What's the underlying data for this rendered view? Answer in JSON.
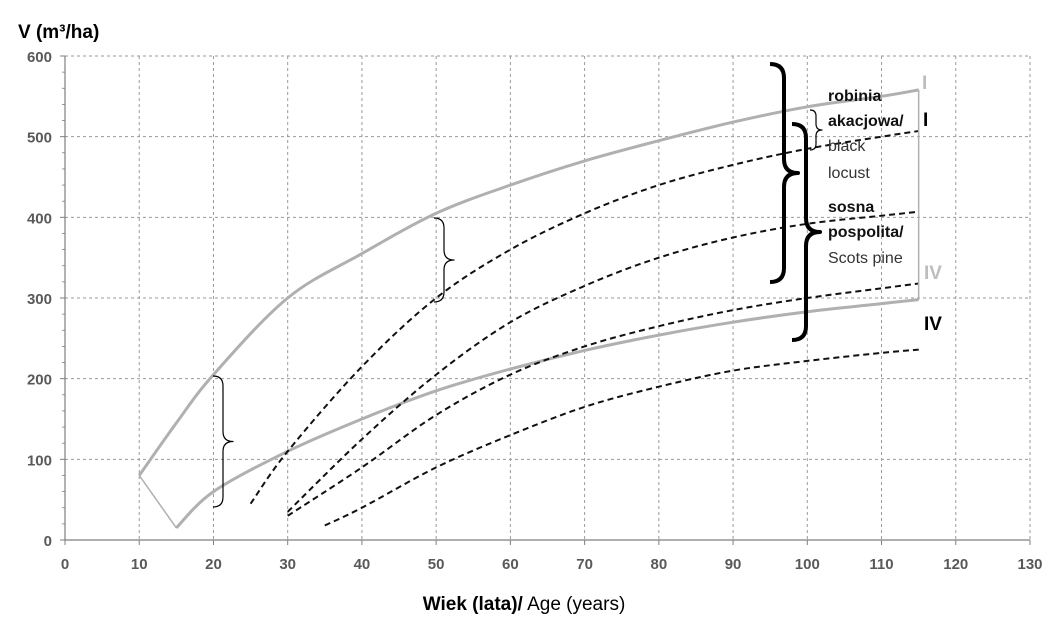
{
  "chart_data": {
    "type": "line",
    "title": "",
    "ylabel": "V (m³/ha)",
    "xlabel_bold": "Wiek (lata)/",
    "xlabel_normal": " Age (years)",
    "xlim": [
      0,
      130
    ],
    "ylim": [
      0,
      600
    ],
    "x_ticks": [
      "0",
      "10",
      "20",
      "30",
      "40",
      "50",
      "60",
      "70",
      "80",
      "90",
      "100",
      "110",
      "120",
      "130"
    ],
    "y_ticks": [
      "0",
      "100",
      "200",
      "300",
      "400",
      "500",
      "600"
    ],
    "grid": true,
    "series": [
      {
        "style": "solid-grey",
        "x": [
          10,
          15,
          20,
          30,
          40,
          50,
          60,
          70,
          80,
          90,
          100,
          110,
          115
        ],
        "y": [
          80,
          145,
          205,
          300,
          355,
          405,
          440,
          470,
          495,
          518,
          537,
          550,
          558
        ]
      },
      {
        "style": "solid-grey",
        "x": [
          15,
          20,
          30,
          40,
          50,
          60,
          70,
          80,
          90,
          100,
          110,
          115
        ],
        "y": [
          15,
          60,
          110,
          150,
          185,
          212,
          235,
          254,
          270,
          283,
          293,
          298
        ]
      },
      {
        "style": "dashed-black",
        "x": [
          25,
          30,
          40,
          50,
          60,
          70,
          80,
          90,
          100,
          110,
          115
        ],
        "y": [
          45,
          110,
          215,
          300,
          360,
          405,
          440,
          465,
          485,
          500,
          507
        ]
      },
      {
        "style": "dashed-black",
        "x": [
          30,
          40,
          50,
          60,
          70,
          80,
          90,
          100,
          110,
          115
        ],
        "y": [
          35,
          125,
          205,
          270,
          315,
          350,
          375,
          392,
          402,
          407
        ]
      },
      {
        "style": "dashed-black",
        "x": [
          30,
          40,
          50,
          60,
          70,
          80,
          90,
          100,
          110,
          115
        ],
        "y": [
          30,
          90,
          155,
          205,
          240,
          265,
          285,
          300,
          312,
          318
        ]
      },
      {
        "style": "dashed-black",
        "x": [
          35,
          40,
          50,
          60,
          70,
          80,
          90,
          100,
          110,
          115
        ],
        "y": [
          18,
          40,
          90,
          130,
          165,
          190,
          210,
          222,
          232,
          236
        ]
      }
    ],
    "annotations": {
      "robinia_line1": "robinia",
      "robinia_line2": "akacjowa/",
      "robinia_roman": "I",
      "robinia_en1": "black",
      "robinia_en2": "locust",
      "sosna_line1": "sosna",
      "sosna_line2": "pospolita/",
      "sosna_en": "Scots pine",
      "label_I_grey": "I",
      "label_IV_grey": "IV",
      "label_IV_black": "IV"
    },
    "colors": {
      "grey_line": "#b0b0b0",
      "dashed_line": "#111111",
      "grid": "#9a9a9a"
    }
  }
}
